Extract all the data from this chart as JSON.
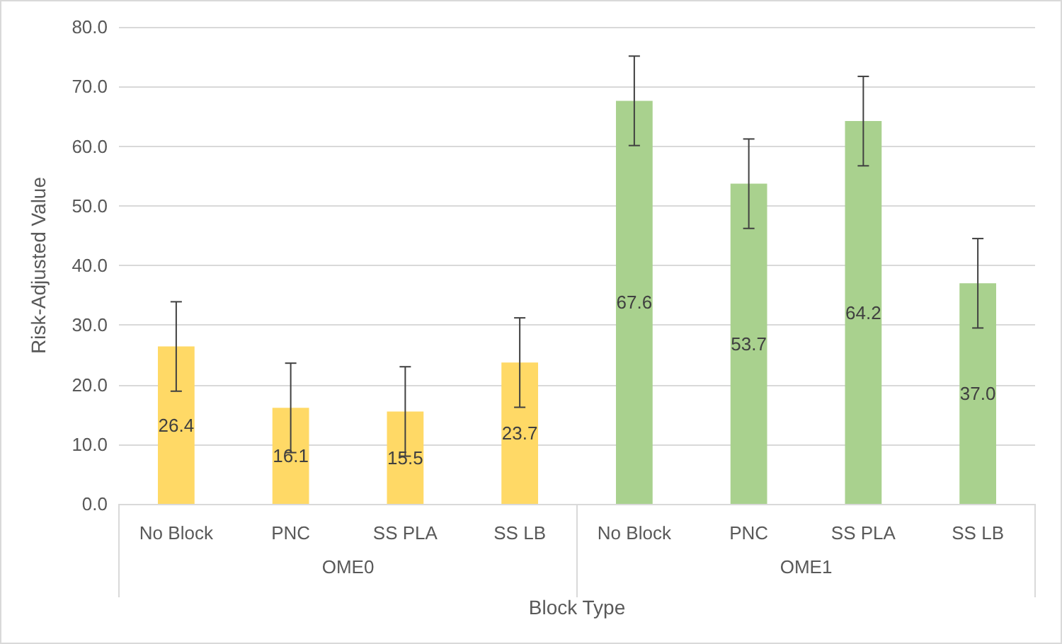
{
  "chart_data": {
    "type": "bar",
    "xlabel": "Block Type",
    "ylabel": "Risk-Adjusted Value",
    "categories": [
      "No Block",
      "PNC",
      "SS PLA",
      "SS LB",
      "No Block",
      "PNC",
      "SS PLA",
      "SS LB"
    ],
    "values": [
      26.4,
      16.1,
      15.5,
      23.7,
      67.6,
      53.7,
      64.2,
      37.0
    ],
    "colors": [
      "#ffd966",
      "#ffd966",
      "#ffd966",
      "#ffd966",
      "#a9d18e",
      "#a9d18e",
      "#a9d18e",
      "#a9d18e"
    ],
    "errors": [
      7.5,
      7.5,
      7.5,
      7.5,
      7.5,
      7.5,
      7.5,
      7.5
    ],
    "value_labels": [
      "26.4",
      "16.1",
      "15.5",
      "23.7",
      "67.6",
      "53.7",
      "64.2",
      "37.0"
    ],
    "annotations": [
      "OME0",
      "OME1"
    ],
    "ylim": [
      0,
      80
    ],
    "yticks": [
      {
        "value": 0,
        "label": "0.0"
      },
      {
        "value": 10,
        "label": "10.0"
      },
      {
        "value": 20,
        "label": "20.0"
      },
      {
        "value": 30,
        "label": "30.0"
      },
      {
        "value": 40,
        "label": "40.0"
      },
      {
        "value": 50,
        "label": "50.0"
      },
      {
        "value": 60,
        "label": "60.0"
      },
      {
        "value": 70,
        "label": "70.0"
      },
      {
        "value": 80,
        "label": "80.0"
      }
    ],
    "grid": "y"
  }
}
